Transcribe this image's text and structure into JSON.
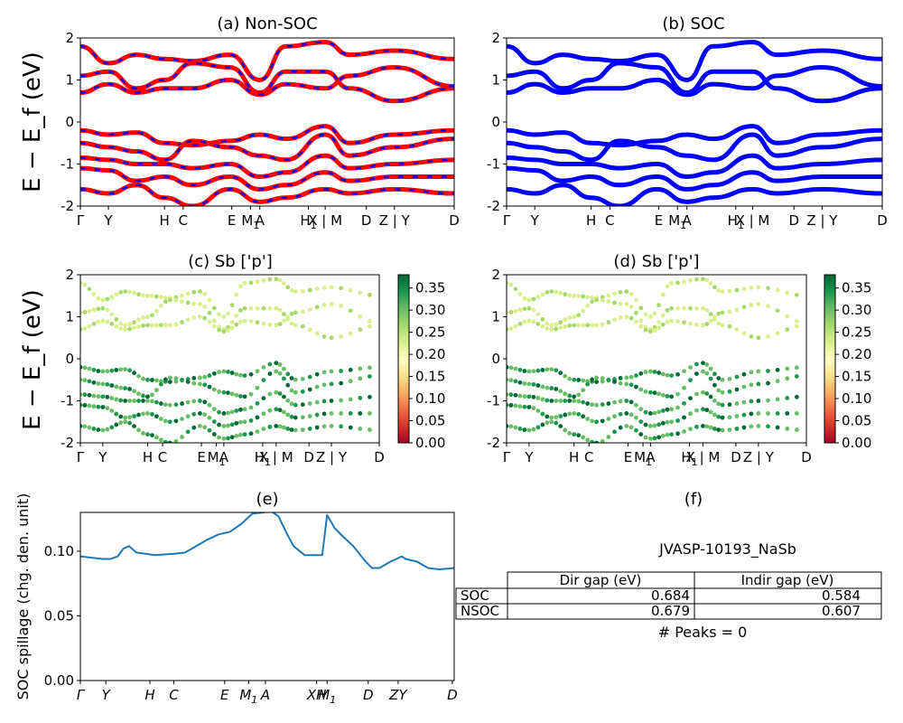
{
  "chart_data": [
    {
      "panel": "a",
      "type": "line",
      "title": "(a) Non-SOC",
      "ylabel": "E − E_f (eV)",
      "ylim": [
        -2,
        2
      ],
      "yticks": [
        -2,
        -1,
        0,
        1,
        2
      ],
      "xticks": [
        {
          "label": "Γ",
          "x": 0.0
        },
        {
          "label": "Y",
          "x": 0.075
        },
        {
          "label": "H",
          "x": 0.225
        },
        {
          "label": "C",
          "x": 0.275
        },
        {
          "label": "E",
          "x": 0.405
        },
        {
          "label": "M",
          "sub": "1",
          "x": 0.455
        },
        {
          "label": "A",
          "x": 0.48
        },
        {
          "label": "H",
          "sub": "1",
          "x": 0.61
        },
        {
          "label": "X | M",
          "x": 0.655
        },
        {
          "label": "D",
          "x": 0.765
        },
        {
          "label": "Z | Y",
          "x": 0.84
        },
        {
          "label": "D",
          "x": 1.0
        }
      ],
      "line_colors": [
        "#ff0000",
        "#0000ff"
      ],
      "bands": [
        {
          "x": [
            0,
            0.075,
            0.15,
            0.225,
            0.3,
            0.4,
            0.48,
            0.55,
            0.655,
            0.72,
            0.84,
            1.0
          ],
          "y": [
            1.8,
            1.4,
            1.6,
            1.5,
            1.45,
            1.6,
            1.0,
            1.8,
            1.9,
            1.6,
            1.7,
            1.5
          ]
        },
        {
          "x": [
            0,
            0.075,
            0.15,
            0.225,
            0.3,
            0.4,
            0.48,
            0.55,
            0.655,
            0.72,
            0.84,
            1.0
          ],
          "y": [
            1.1,
            1.2,
            0.8,
            1.0,
            1.4,
            1.3,
            0.7,
            1.2,
            1.2,
            0.8,
            0.5,
            0.8
          ]
        },
        {
          "x": [
            0,
            0.075,
            0.15,
            0.225,
            0.3,
            0.4,
            0.48,
            0.55,
            0.655,
            0.72,
            0.84,
            1.0
          ],
          "y": [
            0.7,
            0.9,
            0.7,
            0.8,
            0.8,
            1.0,
            0.65,
            0.9,
            0.8,
            1.1,
            1.3,
            0.85
          ]
        },
        {
          "x": [
            0,
            0.075,
            0.15,
            0.225,
            0.3,
            0.4,
            0.48,
            0.55,
            0.655,
            0.72,
            0.84,
            1.0
          ],
          "y": [
            -0.2,
            -0.3,
            -0.25,
            -0.5,
            -0.55,
            -0.45,
            -0.3,
            -0.4,
            -0.1,
            -0.5,
            -0.3,
            -0.2
          ]
        },
        {
          "x": [
            0,
            0.075,
            0.15,
            0.225,
            0.3,
            0.4,
            0.48,
            0.55,
            0.655,
            0.72,
            0.84,
            1.0
          ],
          "y": [
            -0.5,
            -0.6,
            -0.7,
            -0.9,
            -0.45,
            -0.6,
            -0.8,
            -0.9,
            -0.3,
            -0.8,
            -0.6,
            -0.4
          ]
        },
        {
          "x": [
            0,
            0.075,
            0.15,
            0.225,
            0.3,
            0.4,
            0.48,
            0.55,
            0.655,
            0.72,
            0.84,
            1.0
          ],
          "y": [
            -0.85,
            -0.9,
            -1.0,
            -1.0,
            -1.1,
            -1.0,
            -1.3,
            -1.2,
            -0.8,
            -1.1,
            -1.0,
            -0.9
          ]
        },
        {
          "x": [
            0,
            0.075,
            0.15,
            0.225,
            0.3,
            0.4,
            0.48,
            0.55,
            0.655,
            0.72,
            0.84,
            1.0
          ],
          "y": [
            -1.1,
            -1.15,
            -1.4,
            -1.3,
            -1.5,
            -1.3,
            -1.6,
            -1.5,
            -1.2,
            -1.4,
            -1.3,
            -1.3
          ]
        },
        {
          "x": [
            0,
            0.075,
            0.15,
            0.225,
            0.3,
            0.4,
            0.48,
            0.55,
            0.655,
            0.72,
            0.84,
            1.0
          ],
          "y": [
            -1.6,
            -1.7,
            -1.5,
            -1.8,
            -2.0,
            -1.6,
            -1.9,
            -1.8,
            -1.6,
            -1.7,
            -1.6,
            -1.7
          ]
        }
      ]
    },
    {
      "panel": "b",
      "type": "line",
      "title": "(b) SOC",
      "ylim": [
        -2,
        2
      ],
      "yticks": [
        -2,
        -1,
        0,
        1,
        2
      ],
      "line_colors": [
        "#0000ff"
      ],
      "same_bands_as": "a"
    },
    {
      "panel": "c",
      "type": "scatter",
      "title": "(c)  Sb ['p']",
      "ylabel": "E − E_f (eV)",
      "ylim": [
        -2,
        2
      ],
      "yticks": [
        -2,
        -1,
        0,
        1,
        2
      ],
      "colorbar": {
        "colormap": "RdYlGn",
        "range": [
          0.0,
          0.38
        ],
        "ticks": [
          "0.00",
          "0.05",
          "0.10",
          "0.15",
          "0.20",
          "0.25",
          "0.30",
          "0.35"
        ]
      },
      "note": "conduction bands ≈0.20–0.25 weight, valence bands ≈0.28–0.37 weight"
    },
    {
      "panel": "d",
      "type": "scatter",
      "title": "(d) Sb ['p']",
      "ylim": [
        -2,
        2
      ],
      "yticks": [
        -2,
        -1,
        0,
        1,
        2
      ],
      "colorbar": {
        "colormap": "RdYlGn",
        "range": [
          0.0,
          0.38
        ],
        "ticks": [
          "0.00",
          "0.05",
          "0.10",
          "0.15",
          "0.20",
          "0.25",
          "0.30",
          "0.35"
        ]
      }
    },
    {
      "panel": "e",
      "type": "line",
      "title": "(e)",
      "ylabel": "SOC spillage (chg. den. unit)",
      "ylim": [
        0.0,
        0.13
      ],
      "yticks": [
        "0.00",
        "0.05",
        "0.10"
      ],
      "color": "#1f77b4",
      "xticks": [
        {
          "label": "Γ",
          "x": 0.0
        },
        {
          "label": "Y",
          "x": 0.068
        },
        {
          "label": "H",
          "x": 0.186
        },
        {
          "label": "C",
          "x": 0.25
        },
        {
          "label": "E",
          "x": 0.386
        },
        {
          "label": "M",
          "sub": "1",
          "x": 0.45
        },
        {
          "label": "A",
          "x": 0.495
        },
        {
          "label": "XH",
          "x": 0.632
        },
        {
          "label": "M",
          "sub": "1",
          "x": 0.66
        },
        {
          "label": "D",
          "x": 0.77
        },
        {
          "label": "ZY",
          "x": 0.85
        },
        {
          "label": "D",
          "x": 0.995
        }
      ],
      "x": [
        0.0,
        0.03,
        0.06,
        0.08,
        0.1,
        0.115,
        0.13,
        0.15,
        0.2,
        0.25,
        0.28,
        0.31,
        0.34,
        0.37,
        0.4,
        0.43,
        0.46,
        0.49,
        0.51,
        0.53,
        0.55,
        0.57,
        0.6,
        0.64,
        0.647,
        0.66,
        0.68,
        0.7,
        0.73,
        0.76,
        0.78,
        0.8,
        0.83,
        0.86,
        0.87,
        0.9,
        0.93,
        0.96,
        1.0
      ],
      "y": [
        0.096,
        0.095,
        0.094,
        0.094,
        0.096,
        0.102,
        0.104,
        0.099,
        0.097,
        0.098,
        0.099,
        0.104,
        0.109,
        0.113,
        0.115,
        0.121,
        0.129,
        0.13,
        0.131,
        0.127,
        0.115,
        0.104,
        0.097,
        0.097,
        0.097,
        0.128,
        0.118,
        0.112,
        0.104,
        0.093,
        0.087,
        0.087,
        0.092,
        0.096,
        0.094,
        0.092,
        0.087,
        0.086,
        0.087
      ]
    }
  ],
  "panel_f": {
    "title": "(f)",
    "material": "JVASP-10193_NaSb",
    "table": {
      "columns": [
        "Dir gap (eV)",
        "Indir gap (eV)"
      ],
      "rows": [
        {
          "label": "SOC",
          "dir": "0.684",
          "indir": "0.584"
        },
        {
          "label": "NSOC",
          "dir": "0.679",
          "indir": "0.607"
        }
      ]
    },
    "peaks": "# Peaks = 0"
  },
  "shared": {
    "ylabel_energy": "E − E_f (eV)",
    "xtick_labels_bands": [
      "Γ",
      "Y",
      "H",
      "C",
      "E",
      "M₁",
      "A",
      "H₁",
      "X | M",
      "D",
      "Z | Y",
      "D"
    ]
  }
}
